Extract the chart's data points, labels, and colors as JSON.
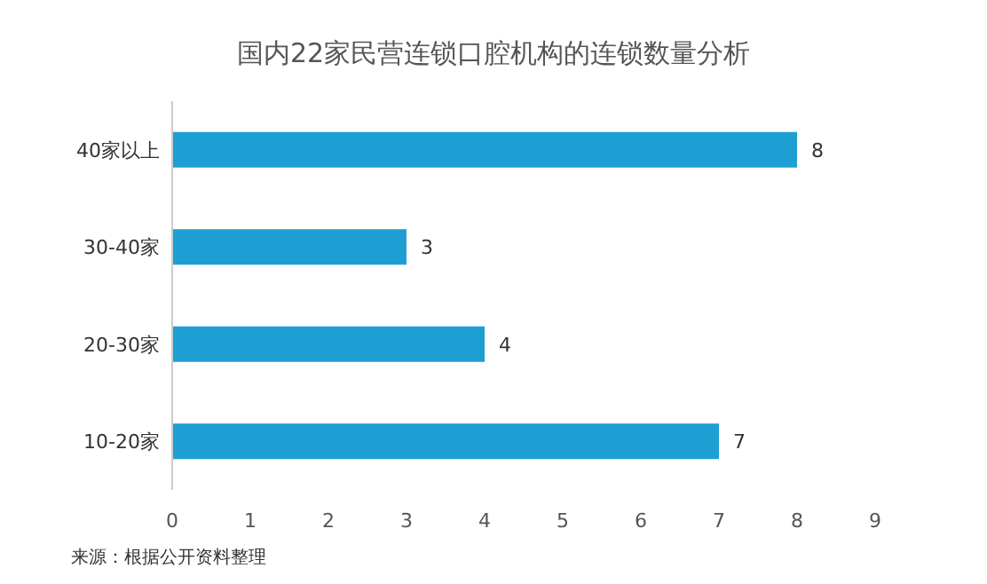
{
  "chart_data": {
    "type": "bar",
    "orientation": "horizontal",
    "title": "国内22家民营连锁口腔机构的连锁数量分析",
    "categories": [
      "40家以上",
      "30-40家",
      "20-30家",
      "10-20家"
    ],
    "values": [
      8,
      3,
      4,
      7
    ],
    "color": "#1e9fd4",
    "xlim": [
      0,
      9
    ],
    "xticks": [
      0,
      1,
      2,
      3,
      4,
      5,
      6,
      7,
      8,
      9
    ],
    "data_labels": true,
    "annotations": [
      "来源：根据公开资料整理"
    ]
  }
}
